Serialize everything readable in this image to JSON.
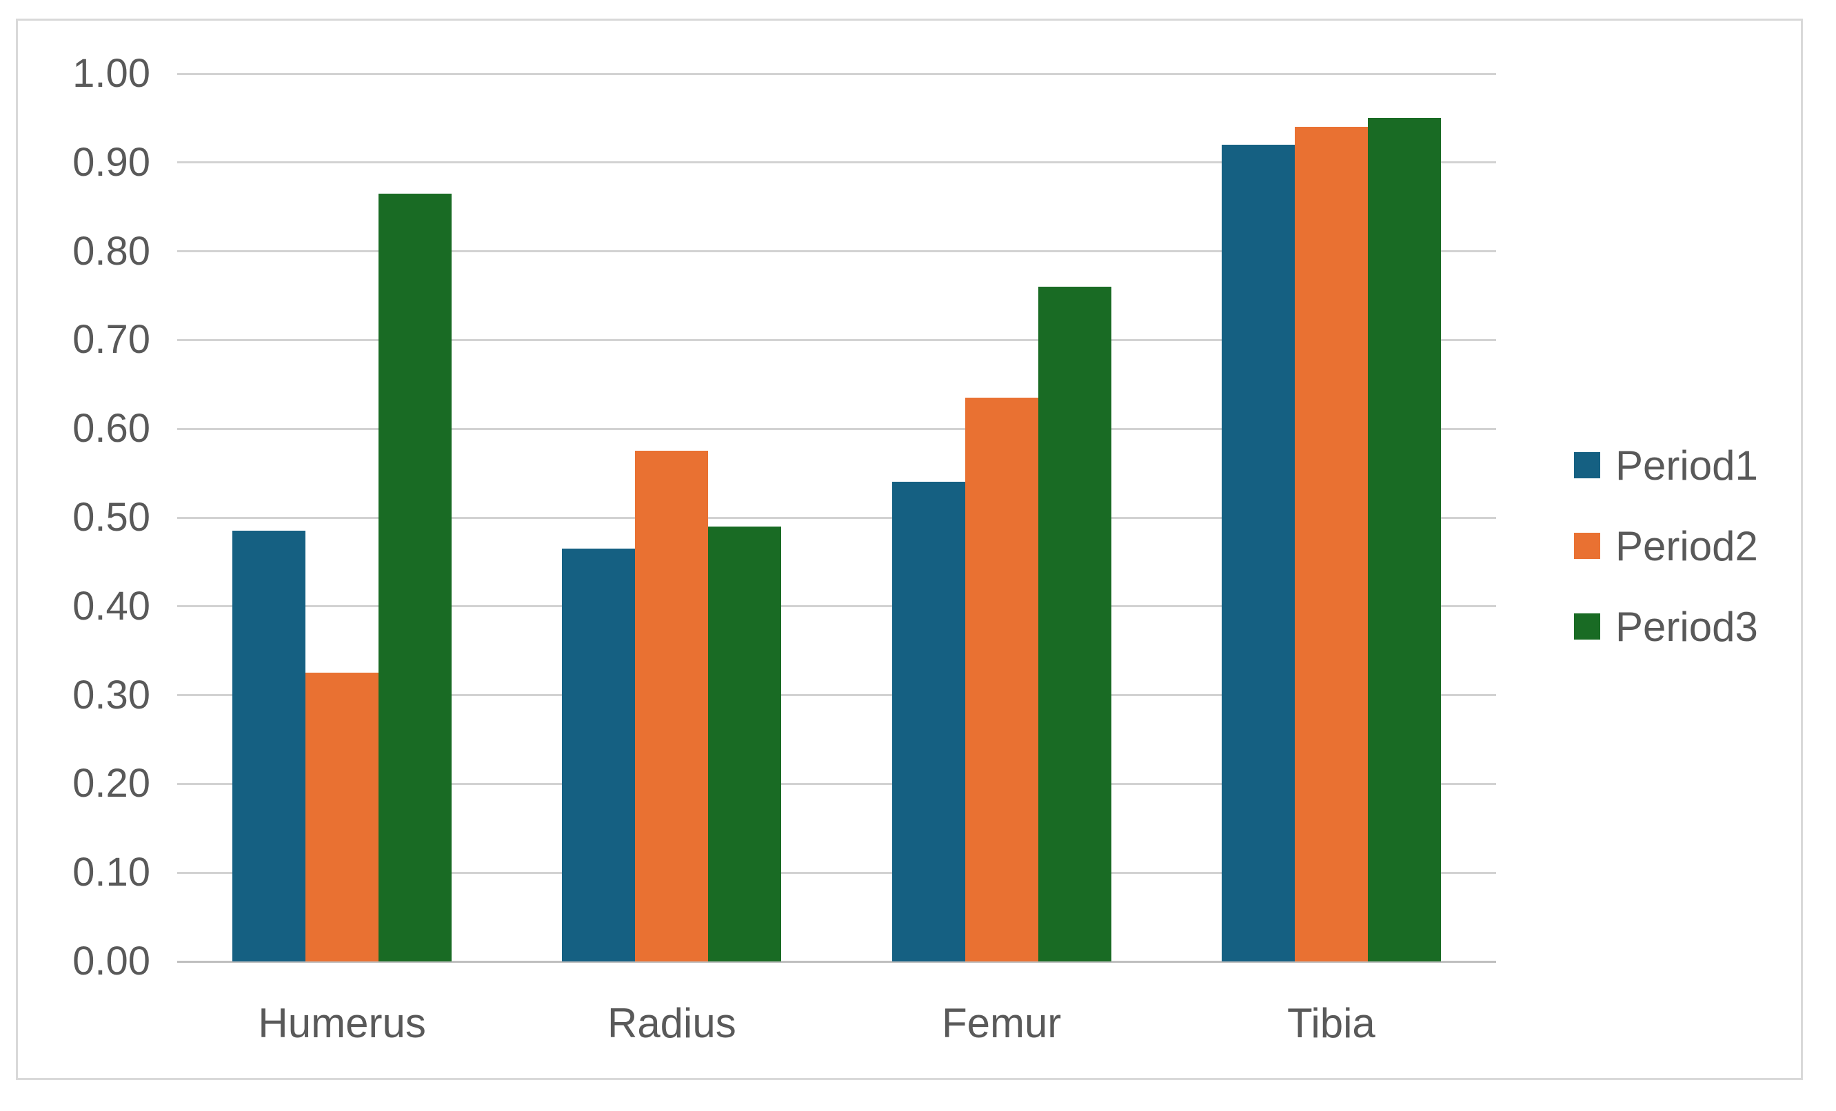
{
  "chart_data": {
    "type": "bar",
    "categories": [
      "Humerus",
      "Radius",
      "Femur",
      "Tibia"
    ],
    "series": [
      {
        "name": "Period1",
        "color": "#156082",
        "values": [
          0.485,
          0.465,
          0.54,
          0.92
        ]
      },
      {
        "name": "Period2",
        "color": "#E97132",
        "values": [
          0.325,
          0.575,
          0.635,
          0.94
        ]
      },
      {
        "name": "Period3",
        "color": "#196B24",
        "values": [
          0.865,
          0.49,
          0.76,
          0.95
        ]
      }
    ],
    "y_axis": {
      "min": 0.0,
      "max": 1.0,
      "step": 0.1,
      "tick_labels": [
        "1.00",
        "0.90",
        "0.80",
        "0.70",
        "0.60",
        "0.50",
        "0.40",
        "0.30",
        "0.20",
        "0.10",
        "0.00"
      ]
    },
    "grid": true,
    "legend_position": "right",
    "colors": {
      "gridline": "#D2D2D2",
      "axis_line": "#BFBFBF",
      "tick_label": "#595959",
      "frame_border": "#D9D9D9",
      "background": "#FFFFFF"
    }
  }
}
